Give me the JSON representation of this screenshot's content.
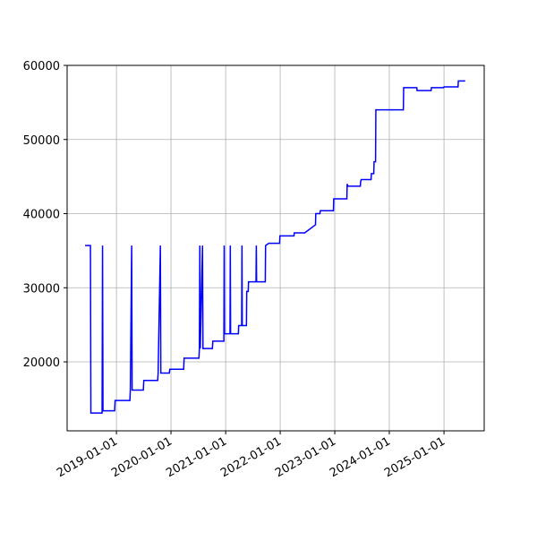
{
  "chart_data": {
    "type": "line",
    "x": [
      "2018-06-05",
      "2018-07-11",
      "2018-07-14",
      "2018-09-27",
      "2018-09-30",
      "2018-10-03",
      "2018-12-20",
      "2018-12-23",
      "2019-04-01",
      "2019-04-04",
      "2019-04-13",
      "2019-04-16",
      "2019-06-30",
      "2019-07-03",
      "2019-10-04",
      "2019-10-07",
      "2019-10-22",
      "2019-10-25",
      "2019-12-21",
      "2019-12-24",
      "2020-03-26",
      "2020-03-29",
      "2020-07-06",
      "2020-07-09",
      "2020-07-12",
      "2020-07-15",
      "2020-07-30",
      "2020-08-02",
      "2020-10-04",
      "2020-10-07",
      "2020-12-20",
      "2020-12-22",
      "2020-12-24",
      "2021-01-30",
      "2021-02-01",
      "2021-02-03",
      "2021-03-27",
      "2021-03-29",
      "2021-04-18",
      "2021-04-20",
      "2021-04-22",
      "2021-05-20",
      "2021-05-22",
      "2021-06-01",
      "2021-06-03",
      "2021-07-23",
      "2021-07-25",
      "2021-07-27",
      "2021-09-23",
      "2021-09-25",
      "2021-10-17",
      "2021-12-28",
      "2021-12-30",
      "2022-04-03",
      "2022-04-05",
      "2022-06-14",
      "2022-08-25",
      "2022-08-27",
      "2022-09-24",
      "2022-09-26",
      "2022-12-23",
      "2022-12-25",
      "2023-03-23",
      "2023-03-25",
      "2023-03-30",
      "2023-06-21",
      "2023-06-23",
      "2023-06-27",
      "2023-09-01",
      "2023-09-03",
      "2023-09-19",
      "2023-09-21",
      "2023-10-01",
      "2023-10-03",
      "2024-04-04",
      "2024-04-06",
      "2024-07-03",
      "2024-07-05",
      "2024-10-07",
      "2024-10-09",
      "2024-12-30",
      "2025-01-01",
      "2025-04-05",
      "2025-04-07",
      "2025-05-23"
    ],
    "series": [
      {
        "color": "blue",
        "values": [
          35700,
          35700,
          13100,
          13100,
          35700,
          13400,
          13400,
          14800,
          14800,
          16200,
          35700,
          16200,
          16200,
          17500,
          17500,
          18500,
          35700,
          18500,
          18500,
          19000,
          19000,
          20500,
          20500,
          21800,
          35700,
          21800,
          35700,
          21800,
          21800,
          22800,
          22800,
          35700,
          23800,
          23800,
          35700,
          23800,
          23800,
          24900,
          24900,
          35700,
          24900,
          24900,
          29500,
          29500,
          30800,
          30800,
          35700,
          30800,
          30800,
          35700,
          36000,
          36000,
          37000,
          37000,
          37400,
          37400,
          38500,
          40000,
          40000,
          40400,
          40400,
          42000,
          42000,
          44000,
          43700,
          43700,
          44300,
          44600,
          44600,
          45400,
          45400,
          47000,
          47000,
          54000,
          54000,
          57000,
          57000,
          56600,
          56600,
          57000,
          57000,
          57100,
          57100,
          57900,
          57900
        ]
      }
    ],
    "xlim": [
      "2018-02-05",
      "2025-09-27"
    ],
    "xticks": [
      "2019-01-01",
      "2020-01-01",
      "2021-01-01",
      "2022-01-01",
      "2023-01-01",
      "2024-01-01",
      "2025-01-01"
    ],
    "ylim": [
      10700,
      60000
    ],
    "yticks": [
      20000,
      30000,
      40000,
      50000,
      60000
    ],
    "grid": true
  }
}
